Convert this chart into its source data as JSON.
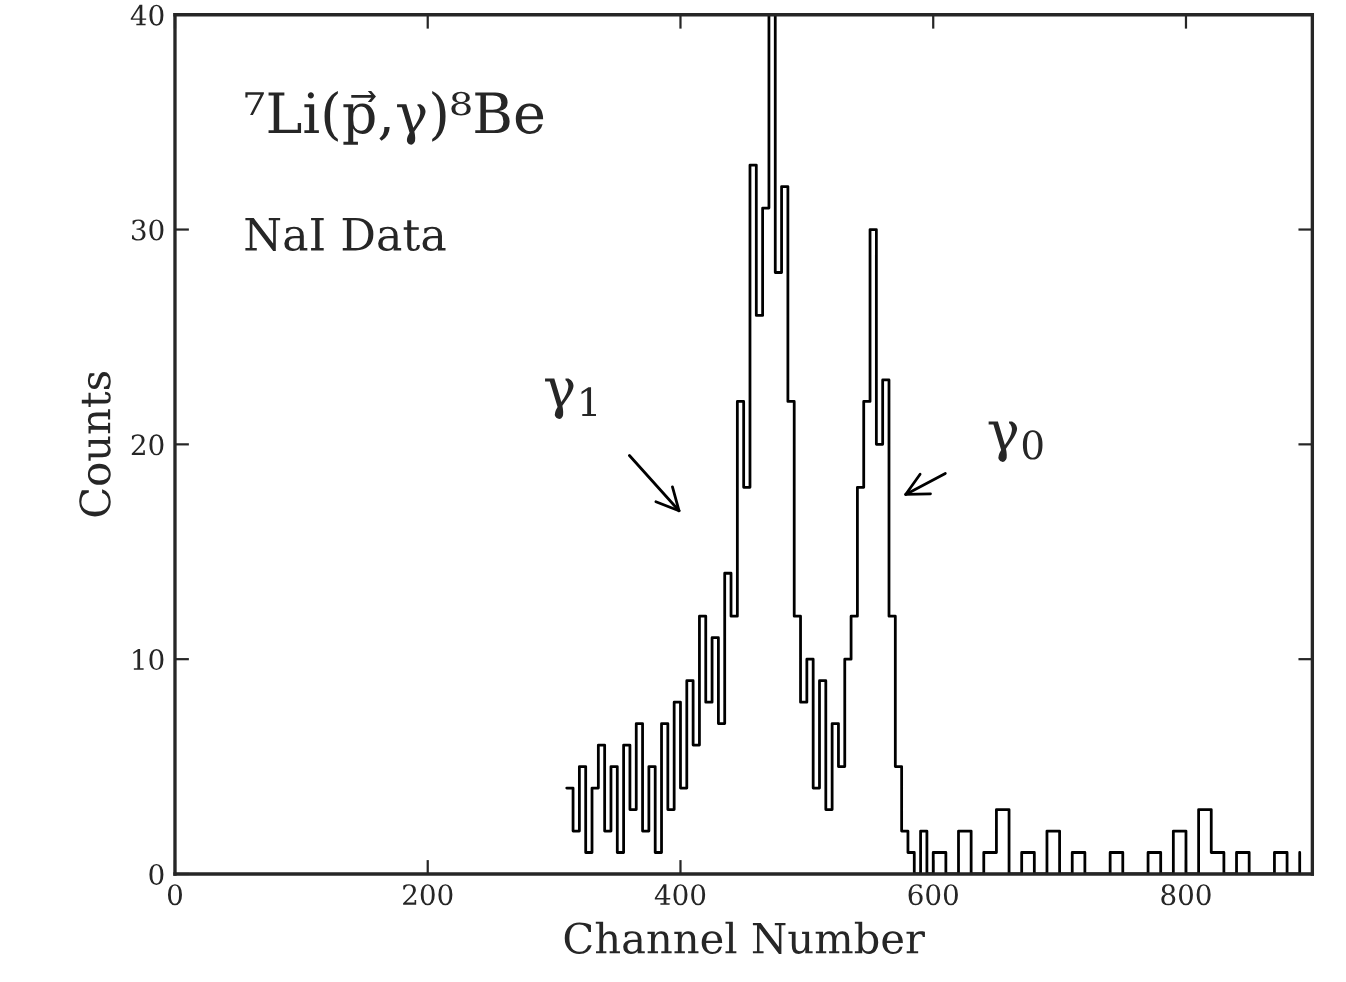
{
  "chart_data": {
    "type": "step",
    "xlabel": "Channel Number",
    "ylabel": "Counts",
    "annotations": [
      "⁷Li(p⃗,γ)⁸Be",
      "NaI Data",
      "γ$_{1}$",
      "γ$_{0}$"
    ],
    "x": [
      310,
      315,
      320,
      325,
      330,
      335,
      340,
      345,
      350,
      355,
      360,
      365,
      370,
      375,
      380,
      385,
      390,
      395,
      400,
      405,
      410,
      415,
      420,
      425,
      430,
      435,
      440,
      445,
      450,
      455,
      460,
      465,
      470,
      475,
      480,
      485,
      490,
      495,
      500,
      505,
      510,
      515,
      520,
      525,
      530,
      535,
      540,
      545,
      550,
      555,
      560,
      565,
      570,
      575,
      580,
      585,
      590,
      595,
      600,
      610,
      620,
      630,
      640,
      650,
      660,
      670,
      680,
      690,
      700,
      710,
      720,
      730,
      740,
      750,
      760,
      770,
      780,
      790,
      800,
      810,
      820,
      830,
      840,
      850,
      860,
      870,
      880,
      890
    ],
    "series": [
      {
        "color": "#000000",
        "values": [
          4,
          2,
          5,
          1,
          4,
          6,
          2,
          5,
          1,
          6,
          3,
          7,
          2,
          5,
          1,
          7,
          3,
          8,
          4,
          9,
          6,
          12,
          8,
          11,
          7,
          14,
          12,
          22,
          18,
          33,
          26,
          31,
          40,
          28,
          32,
          22,
          12,
          8,
          10,
          4,
          9,
          3,
          7,
          5,
          10,
          12,
          18,
          22,
          30,
          20,
          23,
          12,
          5,
          2,
          1,
          0,
          2,
          0,
          1,
          0,
          2,
          0,
          1,
          3,
          0,
          1,
          0,
          2,
          0,
          1,
          0,
          0,
          1,
          0,
          0,
          1,
          0,
          2,
          0,
          3,
          1,
          0,
          1,
          0,
          0,
          1,
          0,
          1
        ]
      }
    ],
    "xlim": [
      0,
      900
    ],
    "ylim": [
      0,
      40
    ],
    "xticks": [
      0,
      200,
      400,
      600,
      800
    ],
    "yticks": [
      0,
      10,
      20,
      30,
      40
    ],
    "grid": false,
    "legend": false
  }
}
